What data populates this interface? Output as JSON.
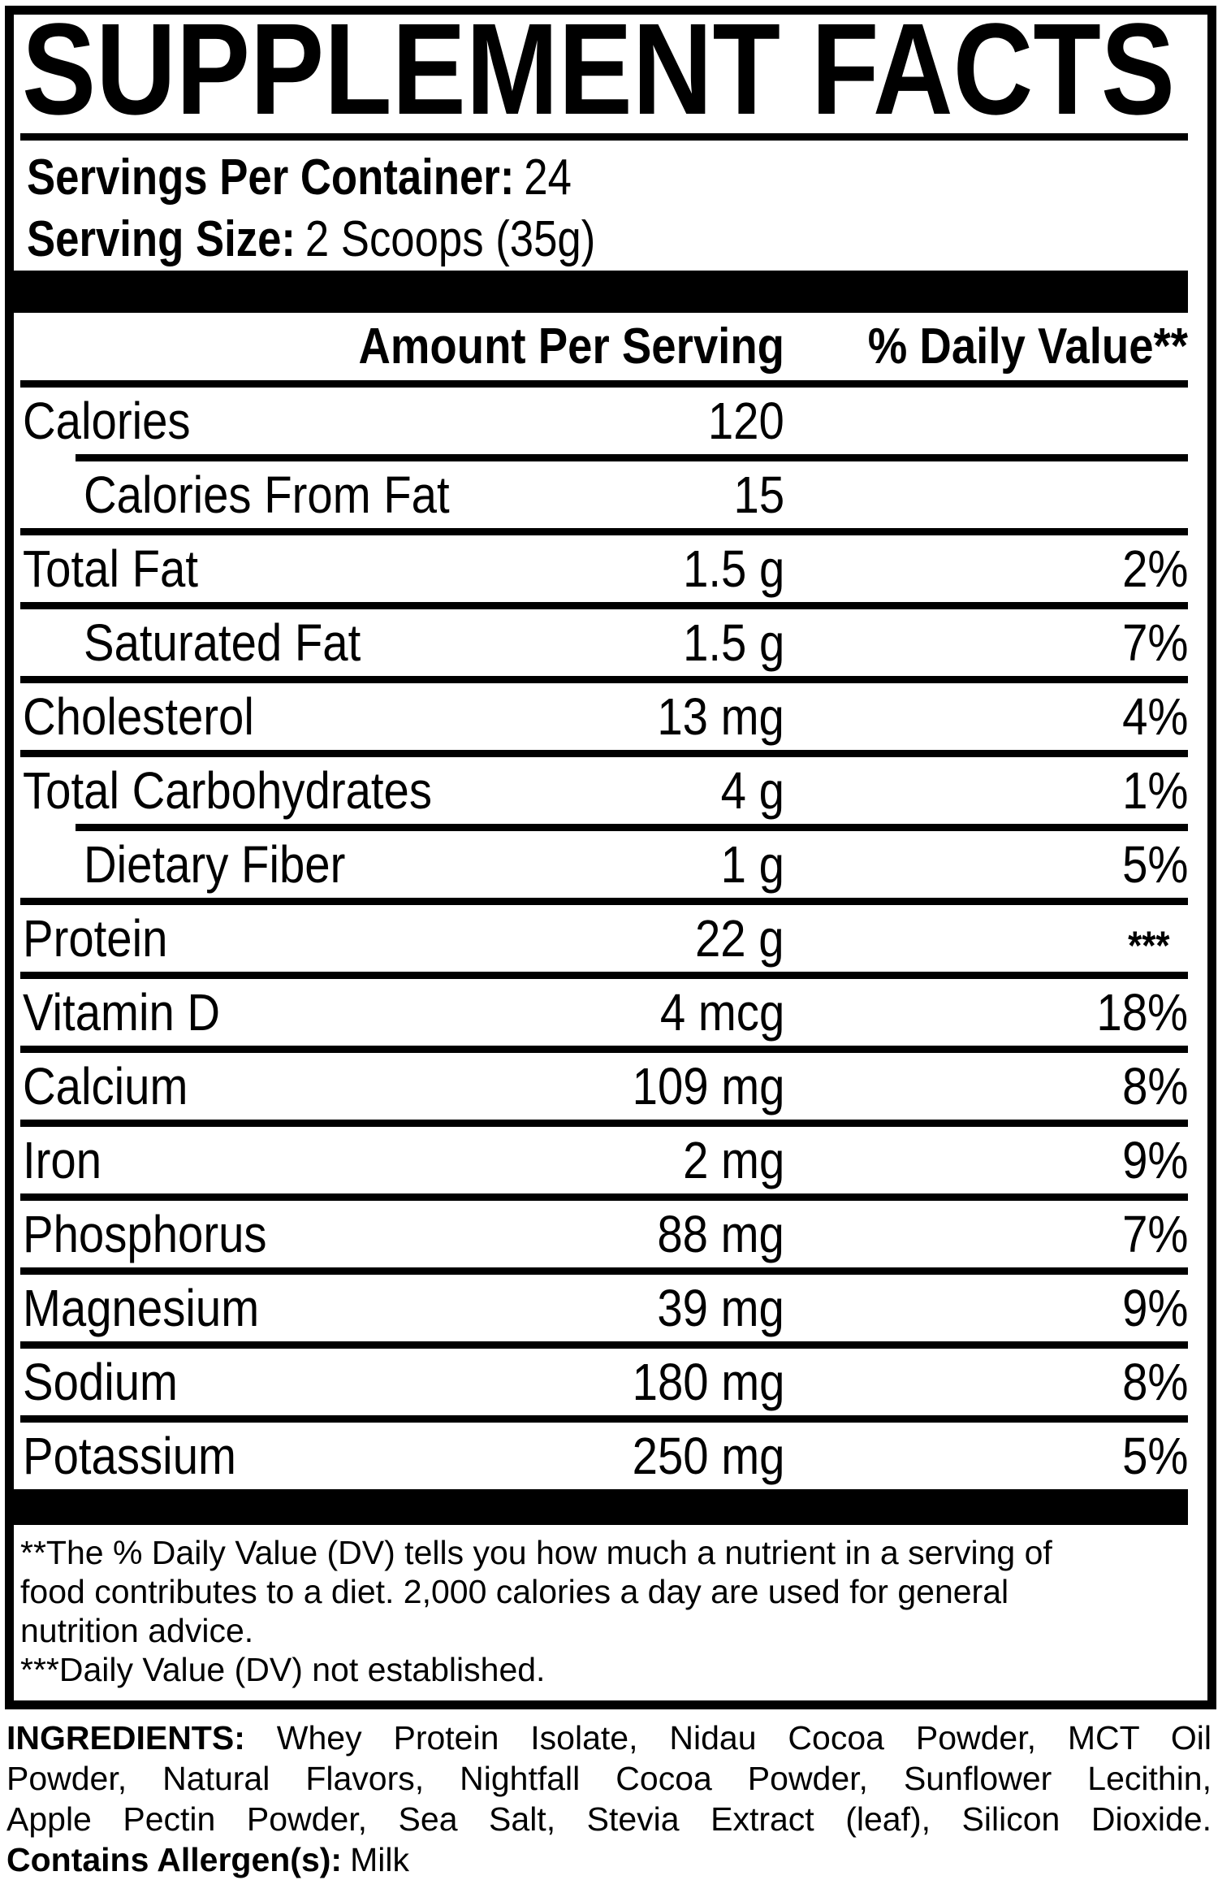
{
  "colors": {
    "ink": "#000000",
    "paper": "#ffffff"
  },
  "title": "SUPPLEMENT FACTS",
  "serving_info": {
    "servings_per_container_label": "Servings Per Container:",
    "servings_per_container_value": "24",
    "serving_size_label": "Serving Size:",
    "serving_size_value": "2 Scoops (35g)"
  },
  "table": {
    "header": {
      "amount": "Amount Per Serving",
      "daily_value": "% Daily Value**"
    },
    "rows": [
      {
        "label": "Calories",
        "amount": "120",
        "dv": "",
        "indent": false,
        "dv_top": false,
        "rule_after": "indent"
      },
      {
        "label": "Calories From Fat",
        "amount": "15",
        "dv": "",
        "indent": true,
        "dv_top": false,
        "rule_after": "full"
      },
      {
        "label": "Total Fat",
        "amount": "1.5 g",
        "dv": "2%",
        "indent": false,
        "dv_top": false,
        "rule_after": "full"
      },
      {
        "label": "Saturated Fat",
        "amount": "1.5 g",
        "dv": "7%",
        "indent": true,
        "dv_top": false,
        "rule_after": "full"
      },
      {
        "label": "Cholesterol",
        "amount": "13 mg",
        "dv": "4%",
        "indent": false,
        "dv_top": false,
        "rule_after": "full"
      },
      {
        "label": "Total Carbohydrates",
        "amount": "4 g",
        "dv": "1%",
        "indent": false,
        "dv_top": false,
        "rule_after": "indent"
      },
      {
        "label": "Dietary Fiber",
        "amount": "1 g",
        "dv": "5%",
        "indent": true,
        "dv_top": false,
        "rule_after": "full"
      },
      {
        "label": "Protein",
        "amount": "22 g",
        "dv": "***",
        "indent": false,
        "dv_top": true,
        "rule_after": "full"
      },
      {
        "label": "Vitamin D",
        "amount": "4 mcg",
        "dv": "18%",
        "indent": false,
        "dv_top": false,
        "rule_after": "full"
      },
      {
        "label": "Calcium",
        "amount": "109 mg",
        "dv": "8%",
        "indent": false,
        "dv_top": false,
        "rule_after": "full"
      },
      {
        "label": "Iron",
        "amount": "2 mg",
        "dv": "9%",
        "indent": false,
        "dv_top": false,
        "rule_after": "full"
      },
      {
        "label": "Phosphorus",
        "amount": "88 mg",
        "dv": "7%",
        "indent": false,
        "dv_top": false,
        "rule_after": "full"
      },
      {
        "label": "Magnesium",
        "amount": "39 mg",
        "dv": "9%",
        "indent": false,
        "dv_top": false,
        "rule_after": "full"
      },
      {
        "label": "Sodium",
        "amount": "180 mg",
        "dv": "8%",
        "indent": false,
        "dv_top": false,
        "rule_after": "full"
      },
      {
        "label": "Potassium",
        "amount": "250 mg",
        "dv": "5%",
        "indent": false,
        "dv_top": false,
        "rule_after": "bar"
      }
    ]
  },
  "footnotes": {
    "lines": [
      "**The % Daily Value (DV) tells you how much a nutrient in a serving of",
      "food contributes to a diet. 2,000 calories a day are used for general",
      "nutrition advice.",
      "***Daily Value (DV) not established."
    ]
  },
  "ingredients": {
    "label": "INGREDIENTS:",
    "lines": [
      " Whey Protein Isolate, Nidau Cocoa Powder, MCT Oil",
      "Powder, Natural Flavors, Nightfall Cocoa Powder, Sunflower Lecithin,",
      "Apple Pectin Powder, Sea Salt, Stevia Extract (leaf), Silicon Dioxide."
    ],
    "allergen_label": "Contains Allergen(s):",
    "allergen_value": "Milk"
  }
}
